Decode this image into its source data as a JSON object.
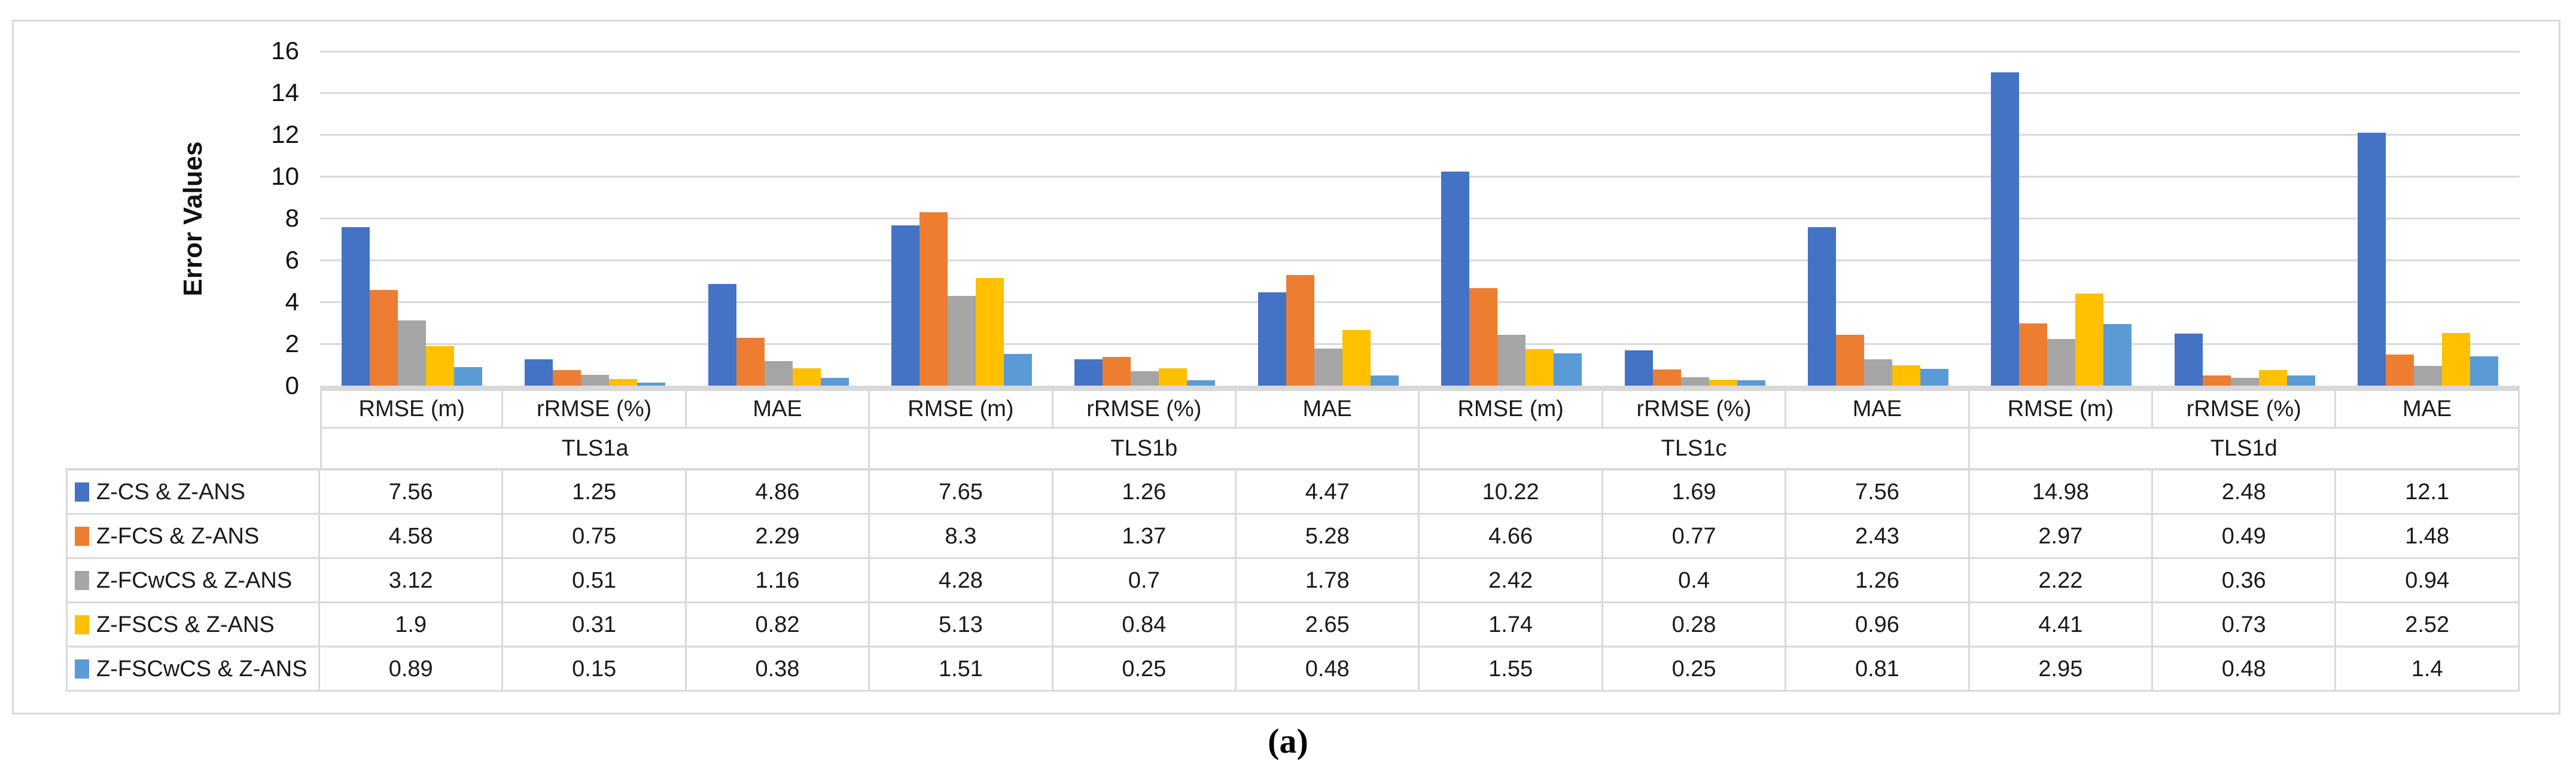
{
  "figure": {
    "caption": "(a)"
  },
  "chart_data": {
    "type": "bar",
    "title": "",
    "xlabel": "",
    "ylabel": "Error Values",
    "ylim": [
      0,
      16
    ],
    "ytick_step": 2,
    "y_ticks": [
      16,
      14,
      12,
      10,
      8,
      6,
      4,
      2,
      0
    ],
    "grid": true,
    "gridline_color": "#d9d9d9",
    "legend_position": "table-left-column",
    "group_labels": [
      "TLS1a",
      "TLS1b",
      "TLS1c",
      "TLS1d"
    ],
    "metric_labels": [
      "RMSE (m)",
      "rRMSE (%)",
      "MAE"
    ],
    "categories": [
      "TLS1a RMSE (m)",
      "TLS1a rRMSE (%)",
      "TLS1a MAE",
      "TLS1b RMSE (m)",
      "TLS1b rRMSE (%)",
      "TLS1b MAE",
      "TLS1c RMSE (m)",
      "TLS1c rRMSE (%)",
      "TLS1c MAE",
      "TLS1d RMSE (m)",
      "TLS1d rRMSE (%)",
      "TLS1d MAE"
    ],
    "series": [
      {
        "name": "Z-CS & Z-ANS",
        "color": "#4472C4",
        "values": [
          7.56,
          1.25,
          4.86,
          7.65,
          1.26,
          4.47,
          10.22,
          1.69,
          7.56,
          14.98,
          2.48,
          12.1
        ]
      },
      {
        "name": "Z-FCS & Z-ANS",
        "color": "#ED7D31",
        "values": [
          4.58,
          0.75,
          2.29,
          8.3,
          1.37,
          5.28,
          4.66,
          0.77,
          2.43,
          2.97,
          0.49,
          1.48
        ]
      },
      {
        "name": "Z-FCwCS & Z-ANS",
        "color": "#A5A5A5",
        "values": [
          3.12,
          0.51,
          1.16,
          4.28,
          0.7,
          1.78,
          2.42,
          0.4,
          1.26,
          2.22,
          0.36,
          0.94
        ]
      },
      {
        "name": "Z-FSCS & Z-ANS",
        "color": "#FFC000",
        "values": [
          1.9,
          0.31,
          0.82,
          5.13,
          0.84,
          2.65,
          1.74,
          0.28,
          0.96,
          4.41,
          0.73,
          2.52
        ]
      },
      {
        "name": "Z-FSCwCS & Z-ANS",
        "color": "#5B9BD5",
        "values": [
          0.89,
          0.15,
          0.38,
          1.51,
          0.25,
          0.48,
          1.55,
          0.25,
          0.81,
          2.95,
          0.48,
          1.4
        ]
      }
    ]
  }
}
